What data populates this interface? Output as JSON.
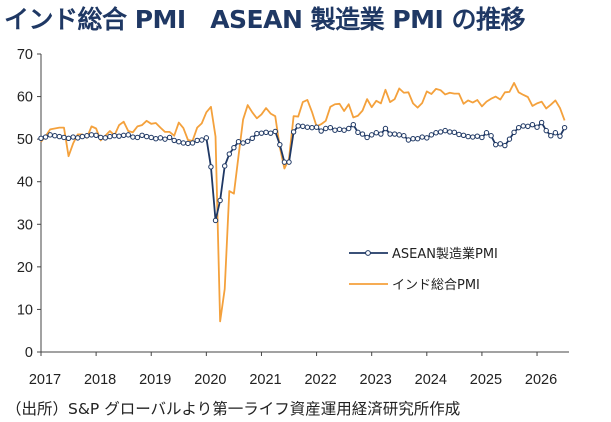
{
  "title": "インド総合 PMI　ASEAN 製造業 PMI の推移",
  "source": "（出所）S&P グローバルより第一ライフ資産運用経済研究所作成",
  "colors": {
    "asean": "#1f3864",
    "india": "#f4a13c",
    "axis": "#444444"
  },
  "chart_data": {
    "type": "line",
    "title": "インド総合 PMI　ASEAN 製造業 PMI の推移",
    "xlabel": "",
    "ylabel": "",
    "ylim": [
      0,
      70
    ],
    "yticks": [
      0,
      10,
      20,
      30,
      40,
      50,
      60,
      70
    ],
    "xlim": [
      2017,
      2026.58
    ],
    "xticks": [
      "2017",
      "2018",
      "2019",
      "2020",
      "2021",
      "2022",
      "2023",
      "2024",
      "2025",
      "2026"
    ],
    "grid": false,
    "legend_position": "center-right",
    "x_start": "2017-01",
    "x_step": "monthly",
    "series": [
      {
        "name": "ASEAN製造業PMI",
        "color": "#1f3864",
        "marker": "circle",
        "values": [
          50.2,
          50.5,
          51.0,
          50.8,
          50.6,
          50.4,
          50.2,
          50.5,
          50.3,
          50.6,
          50.8,
          51.0,
          50.9,
          50.4,
          50.3,
          50.6,
          50.8,
          50.7,
          50.9,
          51.0,
          50.5,
          50.4,
          50.9,
          50.6,
          50.4,
          50.1,
          50.3,
          50.0,
          50.4,
          49.7,
          49.4,
          49.1,
          49.0,
          49.1,
          49.7,
          49.8,
          50.3,
          43.5,
          30.9,
          35.6,
          43.7,
          46.5,
          48.0,
          49.4,
          49.1,
          49.5,
          50.2,
          51.3,
          51.4,
          51.6,
          51.4,
          51.8,
          48.7,
          44.6,
          44.6,
          51.7,
          53.1,
          53.0,
          52.8,
          52.7,
          52.8,
          51.9,
          52.5,
          52.7,
          52.1,
          52.3,
          52.1,
          52.5,
          53.4,
          51.6,
          51.2,
          50.4,
          51.0,
          51.5,
          51.2,
          52.5,
          51.2,
          51.2,
          51.0,
          50.8,
          49.8,
          50.1,
          50.1,
          50.5,
          50.3,
          51.0,
          51.5,
          51.7,
          52.0,
          51.7,
          51.6,
          51.1,
          50.9,
          50.6,
          50.5,
          50.7,
          50.4,
          51.5,
          50.8,
          48.7,
          48.9,
          48.5,
          50.0,
          51.6,
          52.7,
          53.1,
          53.0,
          53.4,
          52.8,
          53.9,
          52.0,
          50.8,
          51.5,
          50.7,
          52.7
        ]
      },
      {
        "name": "インド総合PMI",
        "color": "#f4a13c",
        "values": [
          49.4,
          50.7,
          52.3,
          52.5,
          52.7,
          52.7,
          46.0,
          49.0,
          51.1,
          51.1,
          50.3,
          53.0,
          52.5,
          49.7,
          50.8,
          51.9,
          50.9,
          53.3,
          54.1,
          51.9,
          51.6,
          53.0,
          53.3,
          54.3,
          53.6,
          53.8,
          52.7,
          51.7,
          51.7,
          50.8,
          53.9,
          52.6,
          49.8,
          49.6,
          52.7,
          53.7,
          56.3,
          57.6,
          50.6,
          7.2,
          14.8,
          37.8,
          37.2,
          46.0,
          54.6,
          58.0,
          56.3,
          54.9,
          55.8,
          57.3,
          56.0,
          55.4,
          48.1,
          43.1,
          45.4,
          55.4,
          55.3,
          58.7,
          59.2,
          56.4,
          53.0,
          53.5,
          54.3,
          57.6,
          58.2,
          58.3,
          56.6,
          58.2,
          55.1,
          55.5,
          56.7,
          59.4,
          57.5,
          59.0,
          58.4,
          61.6,
          58.7,
          59.4,
          61.9,
          60.9,
          61.0,
          58.4,
          57.4,
          58.5,
          61.2,
          60.6,
          61.8,
          61.5,
          60.5,
          60.9,
          60.7,
          60.7,
          58.3,
          59.1,
          58.6,
          59.2,
          57.7,
          58.8,
          59.5,
          60.0,
          59.3,
          61.0,
          61.1,
          63.2,
          61.0,
          60.4,
          59.9,
          57.8,
          58.4,
          58.8,
          57.2,
          58.1,
          59.1,
          57.3,
          54.4
        ]
      }
    ]
  }
}
